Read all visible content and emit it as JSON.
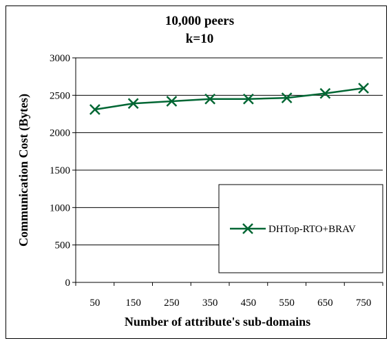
{
  "chart_data": {
    "type": "line",
    "title_lines": [
      "10,000 peers",
      "k=10"
    ],
    "xlabel": "Number of attribute's sub-domains",
    "ylabel": "Communication Cost (Bytes)",
    "categories": [
      "50",
      "150",
      "250",
      "350",
      "450",
      "550",
      "650",
      "750"
    ],
    "ylim": [
      0,
      3000
    ],
    "yticks": [
      0,
      500,
      1000,
      1500,
      2000,
      2500,
      3000
    ],
    "grid": "horizontal",
    "legend_position": "lower-right inside plot",
    "series": [
      {
        "name": "DHTop-RTO+BRAV",
        "marker": "x",
        "color": "#006633",
        "values": [
          2310,
          2390,
          2420,
          2450,
          2450,
          2465,
          2525,
          2595
        ]
      }
    ]
  }
}
